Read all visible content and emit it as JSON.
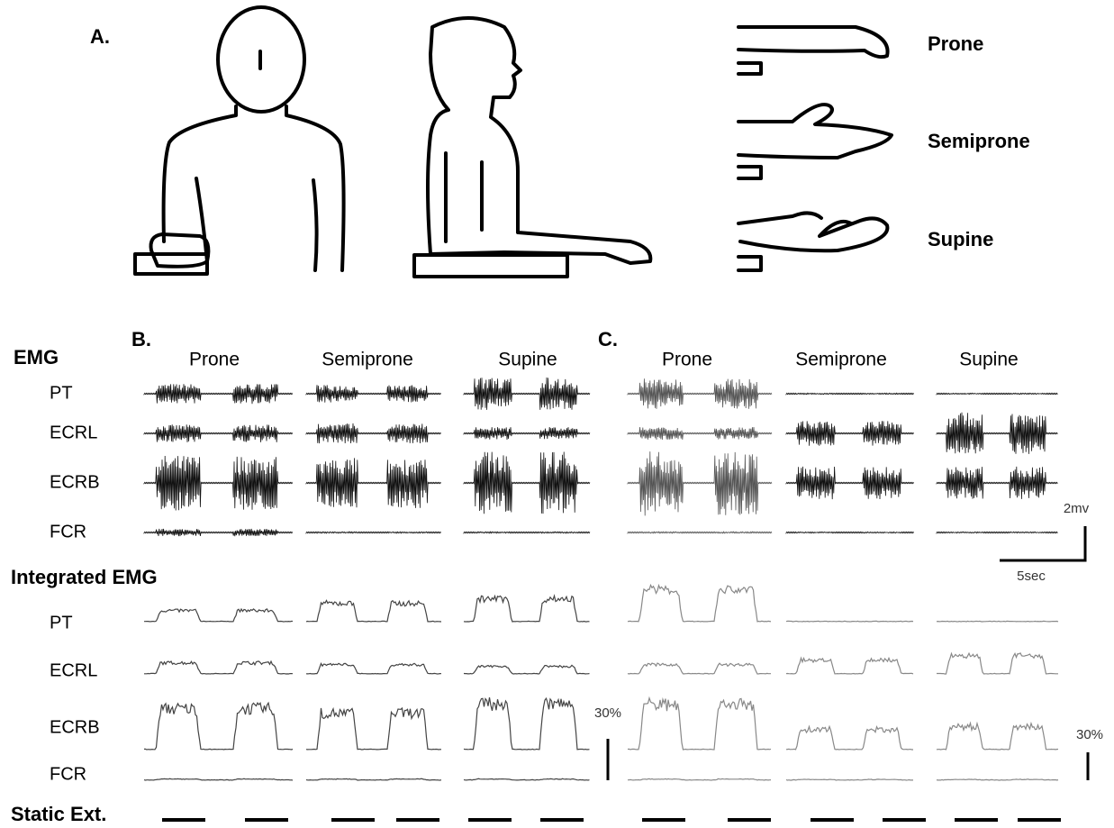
{
  "panel_a": {
    "label": "A.",
    "positions": [
      "Prone",
      "Semiprone",
      "Supine"
    ]
  },
  "panel_b": {
    "label": "B.",
    "conditions": [
      "Prone",
      "Semiprone",
      "Supine"
    ]
  },
  "panel_c": {
    "label": "C.",
    "conditions": [
      "Prone",
      "Semiprone",
      "Supine"
    ]
  },
  "emg": {
    "heading": "EMG",
    "muscles": [
      "PT",
      "ECRL",
      "ECRB",
      "FCR"
    ],
    "scale_amplitude": "2mv",
    "scale_time": "5sec"
  },
  "integrated_emg": {
    "heading": "Integrated EMG",
    "muscles": [
      "PT",
      "ECRL",
      "ECRB",
      "FCR"
    ],
    "scale_b": "30%",
    "scale_c": "30%"
  },
  "static_ext": {
    "label": "Static Ext."
  }
}
